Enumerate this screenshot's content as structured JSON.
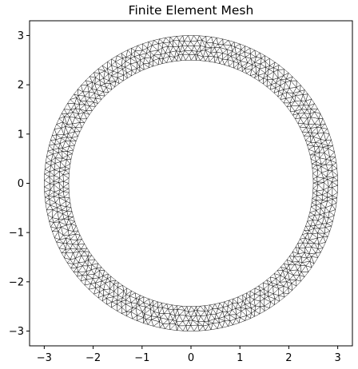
{
  "chart_data": {
    "type": "mesh",
    "title": "Finite Element Mesh",
    "xlabel": "",
    "ylabel": "",
    "xlim": [
      -3.3,
      3.3
    ],
    "ylim": [
      -3.3,
      3.3
    ],
    "x_ticks": [
      -3,
      -2,
      -1,
      0,
      1,
      2,
      3
    ],
    "y_ticks": [
      -3,
      -2,
      -1,
      0,
      1,
      2,
      3
    ],
    "x_tick_labels": [
      "−3",
      "−2",
      "−1",
      "0",
      "1",
      "2",
      "3"
    ],
    "y_tick_labels": [
      "−3",
      "−2",
      "−1",
      "0",
      "1",
      "2",
      "3"
    ],
    "grid": false,
    "aspect": "equal",
    "geometry": {
      "shape": "annulus",
      "center": [
        0,
        0
      ],
      "inner_radius": 2.5,
      "outer_radius": 3.0
    },
    "mesh": {
      "element_type": "triangle",
      "radial_layers": 5,
      "nodes_per_ring": 160,
      "edge_color": "#000000",
      "face_color": "#ffffff"
    }
  },
  "colors": {
    "background": "#ffffff",
    "axes": "#000000",
    "mesh_edges": "#000000"
  }
}
